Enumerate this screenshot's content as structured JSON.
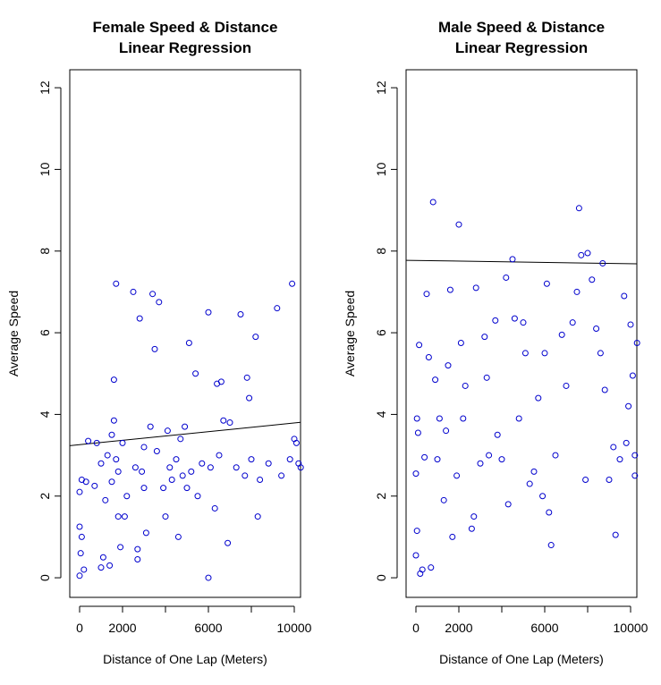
{
  "chart_data": [
    {
      "type": "scatter",
      "title": [
        "Female Speed & Distance",
        "Linear Regression"
      ],
      "x_label": "Distance of One Lap (Meters)",
      "y_label": "Average Speed",
      "color": "#0000cd",
      "xlim": [
        -458,
        10292
      ],
      "ylim": [
        -0.48,
        12.44
      ],
      "xticks": [
        0,
        2000,
        {
          "value": 4000,
          "label": null
        },
        6000,
        {
          "value": 8000,
          "label": null
        },
        10000
      ],
      "yticks": [
        0,
        2,
        4,
        6,
        8,
        10,
        12
      ],
      "regression_line": {
        "intercept": 3.26,
        "slope": 5.3e-05
      },
      "x": [
        0,
        50,
        100,
        0,
        200,
        0,
        100,
        300,
        400,
        700,
        800,
        1000,
        1000,
        1100,
        1200,
        1300,
        1400,
        1500,
        1500,
        1600,
        1600,
        1700,
        1700,
        1800,
        1800,
        1900,
        2000,
        2100,
        2200,
        2500,
        2600,
        2700,
        2700,
        2800,
        2900,
        3000,
        3000,
        3100,
        3300,
        3400,
        3500,
        3600,
        3700,
        3900,
        4000,
        4100,
        4200,
        4300,
        4500,
        4600,
        4700,
        4800,
        4900,
        5000,
        5100,
        5200,
        5400,
        5500,
        5700,
        6000,
        6000,
        6100,
        6300,
        6400,
        6500,
        6600,
        6700,
        6900,
        7000,
        7300,
        7500,
        7700,
        7800,
        7900,
        8000,
        8200,
        8300,
        8400,
        8800,
        9200,
        9400,
        9800,
        9900,
        10000,
        10100,
        10200,
        10300
      ],
      "values": [
        0.05,
        0.6,
        1.0,
        1.25,
        0.2,
        2.1,
        2.4,
        2.35,
        3.35,
        2.25,
        3.3,
        2.8,
        0.25,
        0.5,
        1.9,
        3.0,
        0.3,
        3.5,
        2.35,
        3.85,
        4.85,
        7.2,
        2.9,
        2.6,
        1.5,
        0.75,
        3.3,
        1.5,
        2.0,
        7.0,
        2.7,
        0.45,
        0.7,
        6.35,
        2.6,
        3.2,
        2.2,
        1.1,
        3.7,
        6.95,
        5.6,
        3.1,
        6.75,
        2.2,
        1.5,
        3.6,
        2.7,
        2.4,
        2.9,
        1.0,
        3.4,
        2.5,
        3.7,
        2.2,
        5.75,
        2.6,
        5.0,
        2.0,
        2.8,
        6.5,
        0.0,
        2.7,
        1.7,
        4.75,
        3.0,
        4.8,
        3.85,
        0.85,
        3.8,
        2.7,
        6.45,
        2.5,
        4.9,
        4.4,
        2.9,
        5.9,
        1.5,
        2.4,
        2.8,
        6.6,
        2.5,
        2.9,
        7.2,
        3.4,
        3.3,
        2.8,
        2.7
      ]
    },
    {
      "type": "scatter",
      "title": [
        "Male Speed & Distance",
        "Linear Regression"
      ],
      "x_label": "Distance of One Lap (Meters)",
      "y_label": "Average Speed",
      "color": "#0000cd",
      "xlim": [
        -458,
        10292
      ],
      "ylim": [
        -0.48,
        12.44
      ],
      "xticks": [
        0,
        2000,
        {
          "value": 4000,
          "label": null
        },
        6000,
        {
          "value": 8000,
          "label": null
        },
        10000
      ],
      "yticks": [
        0,
        2,
        4,
        6,
        8,
        10,
        12
      ],
      "regression_line": {
        "intercept": 7.77,
        "slope": -8e-06
      },
      "x": [
        0,
        50,
        0,
        50,
        100,
        150,
        200,
        300,
        400,
        500,
        600,
        700,
        800,
        900,
        1000,
        1100,
        1300,
        1400,
        1500,
        1600,
        1700,
        1900,
        2000,
        2100,
        2200,
        2300,
        2600,
        2700,
        2800,
        3000,
        3200,
        3300,
        3400,
        3700,
        3800,
        4000,
        4200,
        4300,
        4500,
        4600,
        4800,
        5000,
        5100,
        5300,
        5500,
        5700,
        5900,
        6000,
        6100,
        6200,
        6300,
        6500,
        6800,
        7000,
        7300,
        7500,
        7600,
        7700,
        7900,
        8000,
        8200,
        8400,
        8600,
        8700,
        8800,
        9000,
        9200,
        9300,
        9500,
        9700,
        9800,
        9900,
        10000,
        10100,
        10200,
        10300,
        10200
      ],
      "values": [
        0.55,
        1.15,
        2.55,
        3.9,
        3.55,
        5.7,
        0.1,
        0.2,
        2.95,
        6.95,
        5.4,
        0.25,
        9.2,
        4.85,
        2.9,
        3.9,
        1.9,
        3.6,
        5.2,
        7.05,
        1.0,
        2.5,
        8.65,
        5.75,
        3.9,
        4.7,
        1.2,
        1.5,
        7.1,
        2.8,
        5.9,
        4.9,
        3.0,
        6.3,
        3.5,
        2.9,
        7.35,
        1.8,
        7.8,
        6.35,
        3.9,
        6.25,
        5.5,
        2.3,
        2.6,
        4.4,
        2.0,
        5.5,
        7.2,
        1.6,
        0.8,
        3.0,
        5.95,
        4.7,
        6.25,
        7.0,
        9.05,
        7.9,
        2.4,
        7.95,
        7.3,
        6.1,
        5.5,
        7.7,
        4.6,
        2.4,
        3.2,
        1.05,
        2.9,
        6.9,
        3.3,
        4.2,
        6.2,
        4.95,
        3.0,
        5.75,
        2.5
      ]
    }
  ]
}
